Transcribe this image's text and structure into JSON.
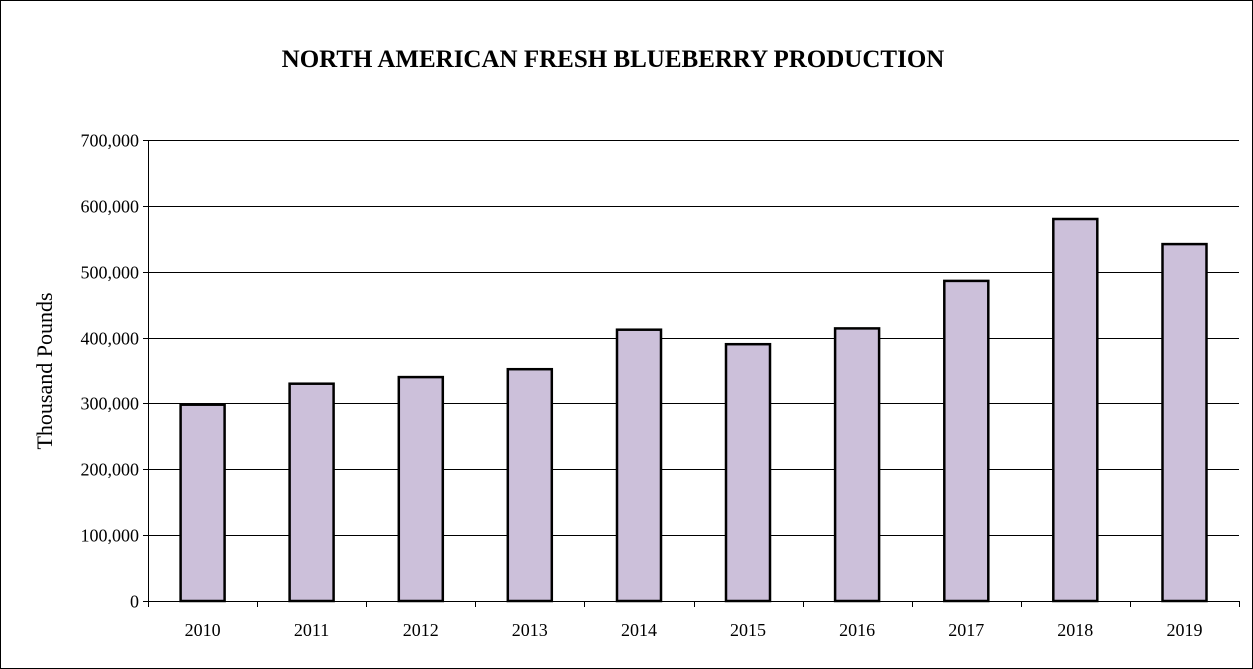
{
  "chart_data": {
    "type": "bar",
    "title": "NORTH AMERICAN FRESH BLUEBERRY PRODUCTION",
    "xlabel": "",
    "ylabel": "Thousand Pounds",
    "categories": [
      "2010",
      "2011",
      "2012",
      "2013",
      "2014",
      "2015",
      "2016",
      "2017",
      "2018",
      "2019"
    ],
    "values": [
      298000,
      330000,
      340000,
      352000,
      412000,
      390000,
      414000,
      486000,
      580000,
      542000
    ],
    "ylim": [
      0,
      700000
    ],
    "yticks": [
      0,
      100000,
      200000,
      300000,
      400000,
      500000,
      600000,
      700000
    ],
    "ytick_labels": [
      "0",
      "100,000",
      "200,000",
      "300,000",
      "400,000",
      "500,000",
      "600,000",
      "700,000"
    ],
    "grid": "horizontal",
    "legend": "none",
    "colors": {
      "bar_fill": "#ccc0da",
      "bar_stroke": "#000000",
      "gridline": "#000000",
      "axis": "#000000"
    }
  }
}
